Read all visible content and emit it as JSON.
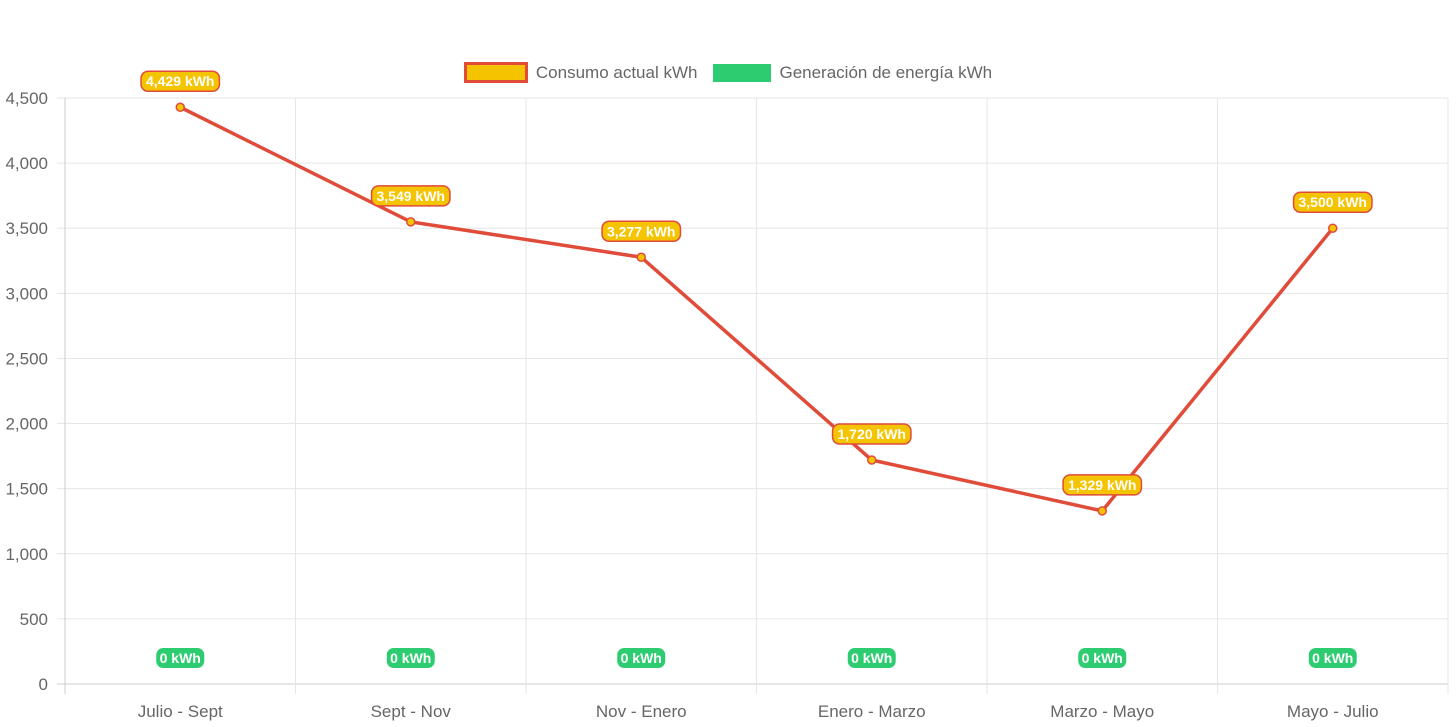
{
  "chart_data": {
    "type": "line",
    "categories": [
      "Julio - Sept",
      "Sept - Nov",
      "Nov - Enero",
      "Enero - Marzo",
      "Marzo - Mayo",
      "Mayo - Julio"
    ],
    "series": [
      {
        "name": "Consumo actual kWh",
        "values": [
          4429,
          3549,
          3277,
          1720,
          1329,
          3500
        ],
        "labels": [
          "4,429 kWh",
          "3,549 kWh",
          "3,277 kWh",
          "1,720 kWh",
          "1,329 kWh",
          "3,500 kWh"
        ],
        "line_color": "#e04b3a",
        "fill_color": "#f5c400"
      },
      {
        "name": "Generación de energía kWh",
        "values": [
          0,
          0,
          0,
          0,
          0,
          0
        ],
        "labels": [
          "0 kWh",
          "0 kWh",
          "0 kWh",
          "0 kWh",
          "0 kWh",
          "0 kWh"
        ],
        "line_color": "#2ecc71",
        "fill_color": "#2ecc71"
      }
    ],
    "y_ticks": [
      "0",
      "500",
      "1,000",
      "1,500",
      "2,000",
      "2,500",
      "3,000",
      "3,500",
      "4,000",
      "4,500"
    ],
    "ylim": [
      0,
      4500
    ],
    "grid": true,
    "legend_position": "top-center"
  }
}
